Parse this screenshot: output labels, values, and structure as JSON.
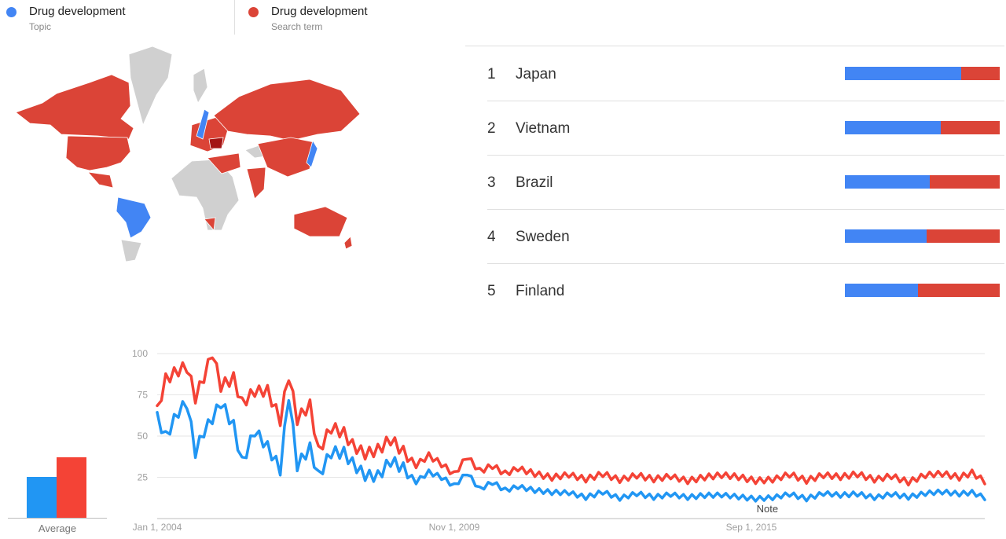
{
  "legend": {
    "topic": {
      "name": "Drug development",
      "sub": "Topic",
      "color": "#4285f4"
    },
    "term": {
      "name": "Drug development",
      "sub": "Search term",
      "color": "#db4437"
    }
  },
  "colors": {
    "topic": "#4285f4",
    "term": "#db4437",
    "topic_line": "#2196f3",
    "term_line": "#f44336",
    "map_no_data": "#d0d0d0",
    "map_term_dark": "#a31515"
  },
  "map": {
    "topic_regions": [
      "Brazil",
      "Sweden",
      "Japan"
    ],
    "term_regions": [
      "Canada",
      "United States",
      "Russia",
      "Australia",
      "China",
      "India"
    ]
  },
  "ranking": [
    {
      "rank": "1",
      "name": "Japan",
      "topic_share": 0.75
    },
    {
      "rank": "2",
      "name": "Vietnam",
      "topic_share": 0.62
    },
    {
      "rank": "3",
      "name": "Brazil",
      "topic_share": 0.55
    },
    {
      "rank": "4",
      "name": "Sweden",
      "topic_share": 0.53
    },
    {
      "rank": "5",
      "name": "Finland",
      "topic_share": 0.47
    }
  ],
  "average": {
    "label": "Average",
    "topic": 23,
    "term": 34
  },
  "chart_data": {
    "type": "line",
    "xlabel": "",
    "ylabel": "",
    "ylim": [
      0,
      100
    ],
    "y_ticks": [
      "100",
      "75",
      "50",
      "25"
    ],
    "x_tick_labels": [
      "Jan 1, 2004",
      "Nov 1, 2009",
      "Sep 1, 2015"
    ],
    "x_range": [
      "2004-01",
      "2020-04"
    ],
    "annotation": "Note",
    "grid": true,
    "series": [
      {
        "key": "topic",
        "anchors": [
          [
            "2004-01",
            62
          ],
          [
            "2004-03",
            50
          ],
          [
            "2004-06",
            65
          ],
          [
            "2004-08",
            70
          ],
          [
            "2004-10",
            40
          ],
          [
            "2004-12",
            52
          ],
          [
            "2005-02",
            60
          ],
          [
            "2005-04",
            70
          ],
          [
            "2005-07",
            56
          ],
          [
            "2005-09",
            34
          ],
          [
            "2005-12",
            54
          ],
          [
            "2006-03",
            44
          ],
          [
            "2006-06",
            30
          ],
          [
            "2006-08",
            75
          ],
          [
            "2006-10",
            32
          ],
          [
            "2007-01",
            42
          ],
          [
            "2007-03",
            25
          ],
          [
            "2007-06",
            40
          ],
          [
            "2007-09",
            40
          ],
          [
            "2007-11",
            34
          ],
          [
            "2008-02",
            27
          ],
          [
            "2008-05",
            26
          ],
          [
            "2008-08",
            35
          ],
          [
            "2008-11",
            30
          ],
          [
            "2009-02",
            22
          ],
          [
            "2009-05",
            28
          ],
          [
            "2009-08",
            25
          ],
          [
            "2009-11",
            20
          ],
          [
            "2010-02",
            28
          ],
          [
            "2010-05",
            18
          ],
          [
            "2010-08",
            22
          ],
          [
            "2010-11",
            17
          ],
          [
            "2011-02",
            19
          ],
          [
            "2011-06",
            17
          ],
          [
            "2011-10",
            16
          ],
          [
            "2012-02",
            16
          ],
          [
            "2012-06",
            13
          ],
          [
            "2012-10",
            16
          ],
          [
            "2013-02",
            12
          ],
          [
            "2013-06",
            15
          ],
          [
            "2013-10",
            13
          ],
          [
            "2014-02",
            15
          ],
          [
            "2014-06",
            13
          ],
          [
            "2014-10",
            14
          ],
          [
            "2015-02",
            14
          ],
          [
            "2015-06",
            13
          ],
          [
            "2015-10",
            12
          ],
          [
            "2016-02",
            13
          ],
          [
            "2016-06",
            15
          ],
          [
            "2016-10",
            12
          ],
          [
            "2017-02",
            15
          ],
          [
            "2017-06",
            14
          ],
          [
            "2017-10",
            15
          ],
          [
            "2018-02",
            13
          ],
          [
            "2018-06",
            15
          ],
          [
            "2018-10",
            13
          ],
          [
            "2019-02",
            15
          ],
          [
            "2019-06",
            16
          ],
          [
            "2019-10",
            15
          ],
          [
            "2020-01",
            16
          ],
          [
            "2020-04",
            13
          ]
        ]
      },
      {
        "key": "term",
        "anchors": [
          [
            "2004-01",
            66
          ],
          [
            "2004-03",
            85
          ],
          [
            "2004-06",
            90
          ],
          [
            "2004-08",
            92
          ],
          [
            "2004-10",
            73
          ],
          [
            "2004-12",
            85
          ],
          [
            "2005-02",
            100
          ],
          [
            "2005-04",
            80
          ],
          [
            "2005-07",
            85
          ],
          [
            "2005-09",
            70
          ],
          [
            "2005-12",
            78
          ],
          [
            "2006-03",
            78
          ],
          [
            "2006-06",
            60
          ],
          [
            "2006-08",
            87
          ],
          [
            "2006-10",
            60
          ],
          [
            "2007-01",
            68
          ],
          [
            "2007-03",
            40
          ],
          [
            "2007-06",
            55
          ],
          [
            "2007-09",
            52
          ],
          [
            "2007-11",
            45
          ],
          [
            "2008-02",
            40
          ],
          [
            "2008-05",
            42
          ],
          [
            "2008-08",
            48
          ],
          [
            "2008-11",
            40
          ],
          [
            "2009-02",
            32
          ],
          [
            "2009-05",
            38
          ],
          [
            "2009-08",
            33
          ],
          [
            "2009-11",
            27
          ],
          [
            "2010-02",
            38
          ],
          [
            "2010-05",
            29
          ],
          [
            "2010-08",
            32
          ],
          [
            "2010-11",
            27
          ],
          [
            "2011-02",
            30
          ],
          [
            "2011-06",
            27
          ],
          [
            "2011-10",
            25
          ],
          [
            "2012-02",
            27
          ],
          [
            "2012-06",
            24
          ],
          [
            "2012-10",
            27
          ],
          [
            "2013-02",
            23
          ],
          [
            "2013-06",
            26
          ],
          [
            "2013-10",
            24
          ],
          [
            "2014-02",
            26
          ],
          [
            "2014-06",
            23
          ],
          [
            "2014-10",
            25
          ],
          [
            "2015-02",
            26
          ],
          [
            "2015-06",
            25
          ],
          [
            "2015-10",
            23
          ],
          [
            "2016-02",
            24
          ],
          [
            "2016-06",
            27
          ],
          [
            "2016-10",
            23
          ],
          [
            "2017-02",
            26
          ],
          [
            "2017-06",
            25
          ],
          [
            "2017-10",
            27
          ],
          [
            "2018-02",
            24
          ],
          [
            "2018-06",
            26
          ],
          [
            "2018-10",
            22
          ],
          [
            "2019-02",
            26
          ],
          [
            "2019-06",
            27
          ],
          [
            "2019-10",
            25
          ],
          [
            "2020-01",
            28
          ],
          [
            "2020-04",
            23
          ]
        ]
      }
    ]
  }
}
